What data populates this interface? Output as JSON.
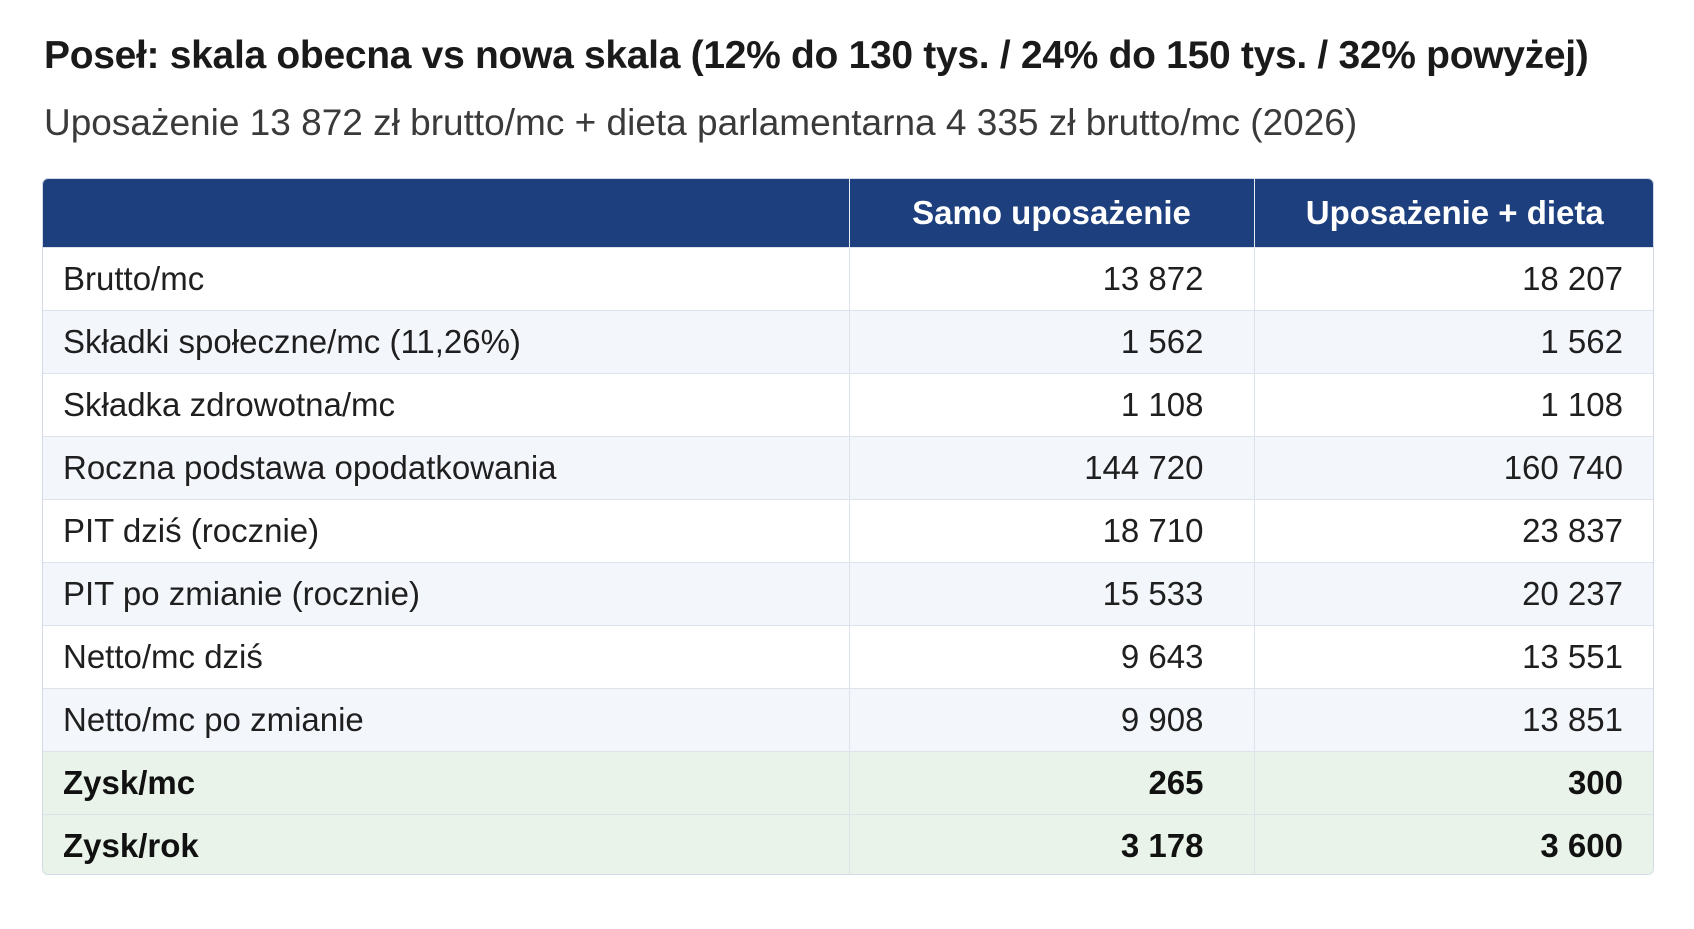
{
  "title": "Poseł: skala obecna vs nowa skala (12% do 130 tys. / 24% do 150 tys. / 32% powyżej)",
  "subtitle": "Uposażenie 13 872 zł brutto/mc + dieta parlamentarna 4 335 zł brutto/mc (2026)",
  "colors": {
    "header_bg": "#1e3f7e",
    "stripe": "#f3f6fb",
    "gain_bg": "#e9f3e9"
  },
  "table": {
    "columns": [
      "",
      "Samo uposażenie",
      "Uposażenie + dieta"
    ],
    "rows": [
      {
        "label": "Brutto/mc",
        "a": "13 872",
        "b": "18 207"
      },
      {
        "label": "Składki społeczne/mc (11,26%)",
        "a": "1 562",
        "b": "1 562"
      },
      {
        "label": "Składka zdrowotna/mc",
        "a": "1 108",
        "b": "1 108"
      },
      {
        "label": "Roczna podstawa opodatkowania",
        "a": "144 720",
        "b": "160 740"
      },
      {
        "label": "PIT dziś (rocznie)",
        "a": "18 710",
        "b": "23 837"
      },
      {
        "label": "PIT po zmianie (rocznie)",
        "a": "15 533",
        "b": "20 237"
      },
      {
        "label": "Netto/mc dziś",
        "a": "9 643",
        "b": "13 551"
      },
      {
        "label": "Netto/mc po zmianie",
        "a": "9 908",
        "b": "13 851"
      },
      {
        "label": "Zysk/mc",
        "a": "265",
        "b": "300"
      },
      {
        "label": "Zysk/rok",
        "a": "3 178",
        "b": "3 600"
      }
    ]
  }
}
